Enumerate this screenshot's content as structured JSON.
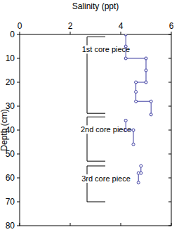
{
  "chart_data": {
    "type": "line",
    "x_label": "Salinity (ppt)",
    "y_label": "Depth (cm)",
    "xlim": [
      0,
      6
    ],
    "xticks": [
      0,
      2,
      4,
      6
    ],
    "ylim": [
      0,
      80
    ],
    "yticks": [
      0,
      10,
      20,
      30,
      40,
      50,
      60,
      70,
      80
    ],
    "color": "#3a3aa0",
    "marker": "circle",
    "series": [
      {
        "x": [
          4.2,
          4.2,
          4.2,
          5.0,
          5.0,
          5.0,
          4.6,
          4.6,
          4.6,
          5.2,
          5.2
        ],
        "values": [
          0,
          5,
          10,
          10,
          15,
          20,
          20,
          24,
          28,
          28,
          33.5
        ]
      },
      {
        "x": [
          4.2,
          4.2,
          4.5,
          4.5
        ],
        "values": [
          36,
          40,
          40,
          46
        ]
      },
      {
        "x": [
          4.8,
          4.8,
          4.7,
          4.7
        ],
        "values": [
          55,
          58,
          58,
          62
        ]
      }
    ],
    "annotations": [
      {
        "text": "1st core piece",
        "range": [
          1,
          33
        ]
      },
      {
        "text": "2nd core piece",
        "range": [
          34.5,
          53
        ]
      },
      {
        "text": "3rd core piece",
        "range": [
          55,
          70
        ]
      }
    ]
  }
}
